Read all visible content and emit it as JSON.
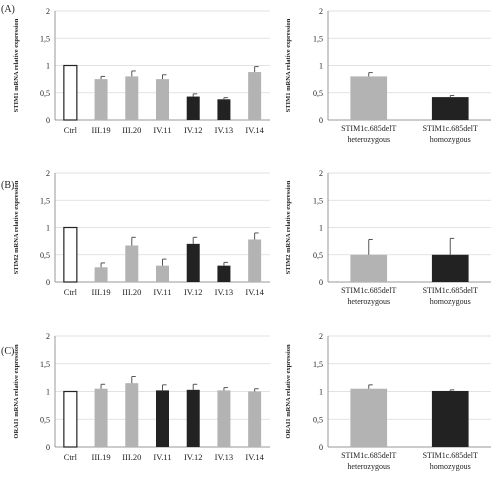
{
  "panel_labels": [
    "(A)",
    "(B)",
    "(C)"
  ],
  "colors": {
    "grey": "#b3b3b3",
    "black": "#222222",
    "white": "#ffffff",
    "axis": "#999999",
    "grid": "#d9d9d9",
    "error": "#555555"
  },
  "chart_data": [
    {
      "type": "bar",
      "panel": "(A)",
      "ylabel": "STIM1 mRNA relative expression",
      "ylim": [
        0,
        2
      ],
      "yticks": [
        "0",
        "0,5",
        "1",
        "1,5",
        "2"
      ],
      "grid": true,
      "categories": [
        "Ctrl",
        "III.19",
        "III.20",
        "IV.11",
        "IV.12",
        "IV.13",
        "IV.14"
      ],
      "values": [
        1.0,
        0.75,
        0.8,
        0.75,
        0.43,
        0.38,
        0.88
      ],
      "errors": [
        0,
        0.05,
        0.1,
        0.08,
        0.05,
        0.03,
        0.1
      ],
      "fills": [
        "white",
        "grey",
        "grey",
        "grey",
        "black",
        "black",
        "grey"
      ]
    },
    {
      "type": "bar",
      "panel": "(A)",
      "ylabel": "STIM1 mRNA relative expression",
      "ylim": [
        0,
        2
      ],
      "yticks": [
        "0",
        "0,5",
        "1",
        "1,5",
        "2"
      ],
      "grid": true,
      "categories": [
        [
          "STIM1c.685delT",
          "heterozygous"
        ],
        [
          "STIM1c.685delT",
          "homozygous"
        ]
      ],
      "values": [
        0.8,
        0.42
      ],
      "errors": [
        0.07,
        0.03
      ],
      "fills": [
        "grey",
        "black"
      ]
    },
    {
      "type": "bar",
      "panel": "(B)",
      "ylabel": "STIM2 mRNA relative expression",
      "ylim": [
        0,
        2
      ],
      "yticks": [
        "0",
        "0,5",
        "1",
        "1,5",
        "2"
      ],
      "grid": true,
      "categories": [
        "Ctrl",
        "III.19",
        "III.20",
        "IV.11",
        "IV.12",
        "IV.13",
        "IV.14"
      ],
      "values": [
        1.0,
        0.27,
        0.67,
        0.3,
        0.7,
        0.3,
        0.78
      ],
      "errors": [
        0,
        0.08,
        0.15,
        0.12,
        0.12,
        0.06,
        0.12
      ],
      "fills": [
        "white",
        "grey",
        "grey",
        "grey",
        "black",
        "black",
        "grey"
      ]
    },
    {
      "type": "bar",
      "panel": "(B)",
      "ylabel": "STIM2 mRNA relative expression",
      "ylim": [
        0,
        2
      ],
      "yticks": [
        "0",
        "0,5",
        "1",
        "1,5",
        "2"
      ],
      "grid": true,
      "categories": [
        [
          "STIM1c.685delT",
          "heterozygous"
        ],
        [
          "STIM1c.685delT",
          "homozygous"
        ]
      ],
      "values": [
        0.5,
        0.5
      ],
      "errors": [
        0.28,
        0.3
      ],
      "fills": [
        "grey",
        "black"
      ]
    },
    {
      "type": "bar",
      "panel": "(C)",
      "ylabel": "ORAI1 mRNA relative expression",
      "ylim": [
        0,
        2
      ],
      "yticks": [
        "0",
        "0,5",
        "1",
        "1,5",
        "2"
      ],
      "grid": true,
      "categories": [
        "Ctrl",
        "III.19",
        "III.20",
        "IV.11",
        "IV.12",
        "IV.13",
        "IV.14"
      ],
      "values": [
        1.0,
        1.05,
        1.15,
        1.02,
        1.03,
        1.02,
        1.0
      ],
      "errors": [
        0,
        0.08,
        0.12,
        0.1,
        0.1,
        0.05,
        0.05
      ],
      "fills": [
        "white",
        "grey",
        "grey",
        "black",
        "black",
        "grey",
        "grey"
      ]
    },
    {
      "type": "bar",
      "panel": "(C)",
      "ylabel": "ORAI1 mRNA relative expression",
      "ylim": [
        0,
        2
      ],
      "yticks": [
        "0",
        "0,5",
        "1",
        "1,5",
        "2"
      ],
      "grid": true,
      "categories": [
        [
          "STIM1c.685delT",
          "heterozygous"
        ],
        [
          "STIM1c.685delT",
          "homozygous"
        ]
      ],
      "values": [
        1.05,
        1.01
      ],
      "errors": [
        0.07,
        0.02
      ],
      "fills": [
        "grey",
        "black"
      ]
    }
  ]
}
